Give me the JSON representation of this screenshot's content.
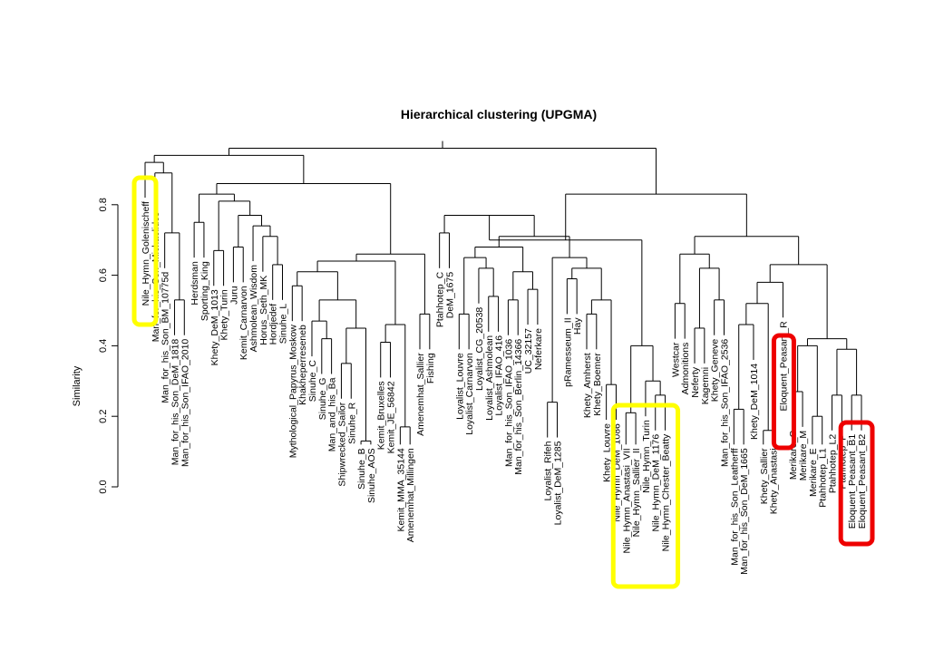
{
  "chart_data": {
    "type": "dendrogram",
    "title": "Hierarchical clustering (UPGMA)",
    "ylabel": "Similarity",
    "xlabel": "",
    "ylim": [
      0.0,
      0.95
    ],
    "yticks": [
      "0.0",
      "0.2",
      "0.4",
      "0.6",
      "0.8"
    ],
    "grid": false,
    "highlight_colors": {
      "yellow": "#ffff00",
      "red": "#ee0000"
    },
    "leaves": [
      "Nile_Hymn_Golenischeff",
      "Man_for_his_Son_Michaelides",
      "Man_for_his_Son_BM_10775d",
      "Man_for_his_Son_DeM_1818",
      "Man_for_his_Son_IFAO_2010",
      "Herdsman",
      "Sporting_King",
      "Khety_DeM_1013",
      "Khety_Turin",
      "Juru",
      "Kemit_Carnarvon",
      "Ashmolean_Wisdom",
      "Horus_Seth_MK",
      "Hordjedef",
      "Sinuhe_L",
      "Mythological_Papyrus_Moskow",
      "Khakheperreseneb",
      "Sinuhe_C",
      "Sinuhe_G",
      "Man_and_his_Ba",
      "Shipwrecked_Sailor",
      "Sinuhe_R",
      "Sinuhe_B",
      "Sinuhe_AOS",
      "Kemit_Bruxelles",
      "Kemit_JE_56842",
      "Kemit_MMA_35144",
      "Amenemhat_Millingen",
      "Amenemhat_Sallier",
      "Fishing",
      "Ptahhotep_C",
      "DeM_1675",
      "Loyalist_Louvre",
      "Loyalist_Carnarvon",
      "Loyalist_CG_20538",
      "Loyalist_Ashmolean",
      "Loyalist_IFAO_416",
      "Man_for_his_Son_IFAO_1036",
      "Man_for_his_Son_Berlin_14366",
      "UC_32157",
      "Neferkare",
      "Loyalist_Rifeh",
      "Loyalist_DeM_1285",
      "pRamesseum_II",
      "Hay",
      "Khety_Amherst",
      "Khety_Boemer",
      "Khety_Louvre",
      "Nile_Hymn_DeM_1086",
      "Nile_Hymn_Anastasi_VII",
      "Nile_Hymn_Sallier_II",
      "Nile_Hymn_Turin",
      "Nile_Hymn_DeM_1176",
      "Nile_Hymn_Chester_Beatty",
      "Westcar",
      "Admonitions",
      "Neferty",
      "Kagemni",
      "Khety_Geneve",
      "Man_for_his_Son_IFAO_2536",
      "Man_for_his_Son_Leatherff",
      "Man_for_his_Son_DeM_1665",
      "Khety_DeM_1014",
      "Khety_Sallier",
      "Khety_Anastasi",
      "Eloquent_Peasant_R",
      "Merikare_C",
      "Merikare_M",
      "Merikare_E",
      "Ptahhotep_L1",
      "Ptahhotep_L2",
      "Ptahhotep_P",
      "Eloquent_Peasant_B1",
      "Eloquent_Peasant_B2"
    ]
  }
}
